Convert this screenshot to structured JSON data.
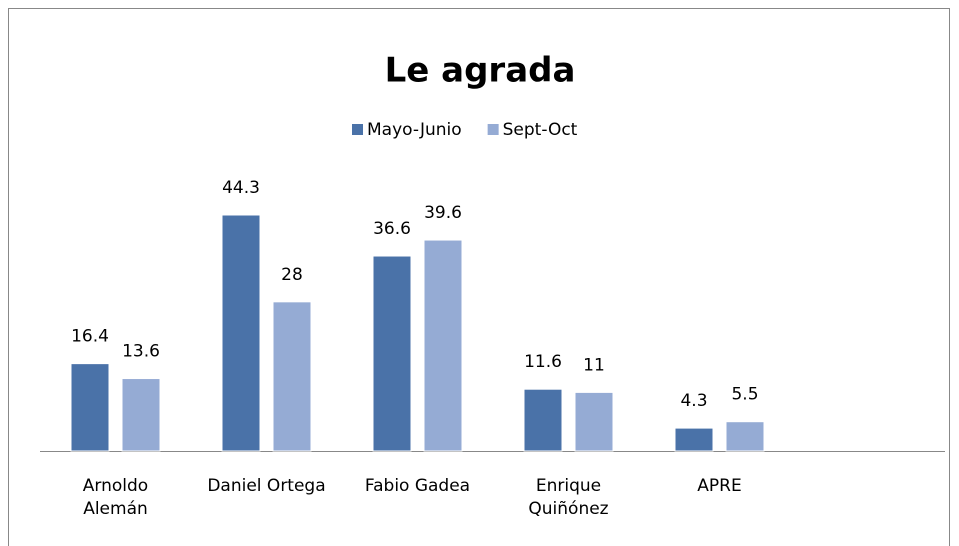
{
  "chart_data": {
    "type": "bar",
    "title": "Le agrada",
    "categories": [
      "Arnoldo\nAlemán",
      "Daniel Ortega",
      "Fabio Gadea",
      "Enrique\nQuiñónez",
      "APRE"
    ],
    "series": [
      {
        "name": "Mayo-Junio",
        "color": "#4a72a8",
        "values": [
          16.4,
          44.3,
          36.6,
          11.6,
          4.3
        ]
      },
      {
        "name": "Sept-Oct",
        "color": "#95abd4",
        "values": [
          13.6,
          28,
          39.6,
          11,
          5.5
        ]
      }
    ],
    "legend": "top"
  }
}
